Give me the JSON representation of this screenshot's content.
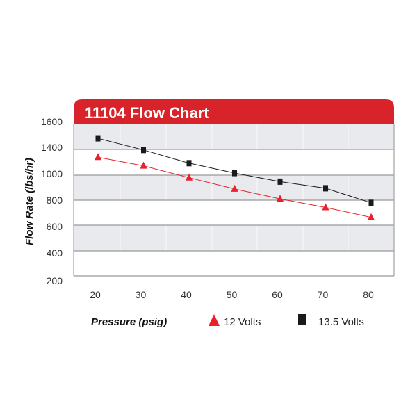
{
  "chart_data": {
    "type": "line",
    "title": "11104 Flow Chart",
    "xlabel": "Pressure (psig)",
    "ylabel": "Flow Rate (lbs/hr)",
    "x": [
      20,
      30,
      40,
      50,
      60,
      70,
      80
    ],
    "y_tick_labels": [
      "1600",
      "1400",
      "1000",
      "800",
      "600",
      "400",
      "200"
    ],
    "x_tick_labels": [
      "20",
      "30",
      "40",
      "50",
      "60",
      "70",
      "80"
    ],
    "grid": true,
    "legend_placement": "bottom",
    "series": [
      {
        "name": "12 Volts",
        "marker": "triangle",
        "color": "#e8212b",
        "values": [
          1250,
          1120,
          970,
          885,
          810,
          745,
          670
        ]
      },
      {
        "name": "13.5 Volts",
        "marker": "square",
        "color": "#1a1a1a",
        "values": [
          1470,
          1360,
          1160,
          1010,
          940,
          890,
          780
        ]
      }
    ],
    "colors": {
      "header": "#d9232a",
      "band": "#e9eaee"
    }
  }
}
